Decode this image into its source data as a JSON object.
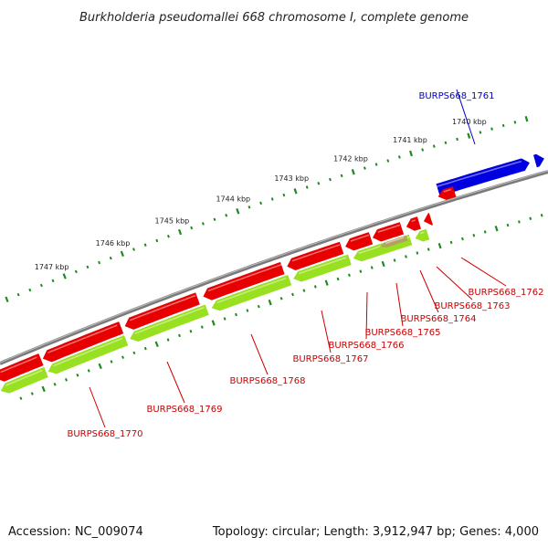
{
  "title": "Burkholderia pseudomallei 668 chromosome I, complete genome",
  "footer": {
    "accession": "Accession: NC_009074",
    "summary": "Topology: circular; Length: 3,912,947 bp; Genes: 4,000"
  },
  "colors": {
    "forward_cds": "#e80000",
    "reverse_cds": "#0000e0",
    "rna": "#99e020",
    "backbone": "#7a7a7a",
    "tick_dots": "#1e8a1e",
    "label_red": "#cc0000",
    "label_blue": "#0000cc"
  },
  "ticks": [
    {
      "label": "1740 kbp"
    },
    {
      "label": "1741 kbp"
    },
    {
      "label": "1742 kbp"
    },
    {
      "label": "1743 kbp"
    },
    {
      "label": "1744 kbp"
    },
    {
      "label": "1745 kbp"
    },
    {
      "label": "1746 kbp"
    },
    {
      "label": "1747 kbp"
    }
  ],
  "genes": [
    {
      "name": "BURPS668_1761",
      "strand": "forward"
    },
    {
      "name": "BURPS668_1762",
      "strand": "reverse"
    },
    {
      "name": "BURPS668_1763",
      "strand": "reverse"
    },
    {
      "name": "BURPS668_1764",
      "strand": "reverse"
    },
    {
      "name": "BURPS668_1765",
      "strand": "reverse"
    },
    {
      "name": "BURPS668_1766",
      "strand": "reverse"
    },
    {
      "name": "BURPS668_1767",
      "strand": "reverse"
    },
    {
      "name": "BURPS668_1768",
      "strand": "reverse"
    },
    {
      "name": "BURPS668_1769",
      "strand": "reverse"
    },
    {
      "name": "BURPS668_1770",
      "strand": "reverse"
    }
  ]
}
